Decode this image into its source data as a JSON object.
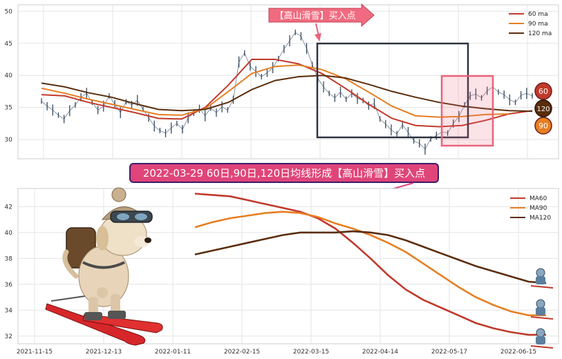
{
  "top_callout": "【高山滑雪】买入点",
  "mid_callout": "2022-03-29 60日,90日,120日均线形成【高山滑雪】买入点",
  "badges": [
    "60",
    "120",
    "90"
  ],
  "colors": {
    "ma60": "#c0392b",
    "ma90": "#e67e22",
    "ma120": "#5a2d0c",
    "price": "#34495e",
    "callout_fill": "#f06b7f",
    "highlight": "#e8637a",
    "dark_box": "#2c3340",
    "mid_callout_fill": "#e0457a",
    "mid_callout_border": "#3b1b6b"
  },
  "chart_data": [
    {
      "type": "line",
      "panel": "top",
      "y_ticks": [
        "30",
        "35",
        "40",
        "45",
        "50"
      ],
      "ylim": [
        27,
        51
      ],
      "grid": true,
      "legend_position": "top-right",
      "legend": [
        "60 ma",
        "90 ma",
        "120 ma"
      ],
      "series": [
        {
          "name": "60 ma",
          "color_key": "ma60",
          "points": [
            [
              0,
              37.0
            ],
            [
              10,
              36.8
            ],
            [
              20,
              35.8
            ],
            [
              30,
              35.0
            ],
            [
              40,
              34.2
            ],
            [
              50,
              33.3
            ],
            [
              60,
              33.2
            ],
            [
              70,
              35.0
            ],
            [
              80,
              38.5
            ],
            [
              90,
              42.5
            ],
            [
              100,
              42.5
            ],
            [
              110,
              41.8
            ],
            [
              120,
              40.3
            ],
            [
              130,
              38.0
            ],
            [
              140,
              35.5
            ],
            [
              150,
              33.3
            ],
            [
              160,
              32.2
            ],
            [
              170,
              32.0
            ],
            [
              180,
              32.2
            ],
            [
              190,
              33.0
            ],
            [
              200,
              34.0
            ],
            [
              210,
              34.5
            ]
          ]
        },
        {
          "name": "90 ma",
          "color_key": "ma90",
          "points": [
            [
              0,
              38.0
            ],
            [
              10,
              37.2
            ],
            [
              20,
              36.3
            ],
            [
              30,
              35.5
            ],
            [
              40,
              34.7
            ],
            [
              50,
              33.9
            ],
            [
              60,
              33.8
            ],
            [
              70,
              34.8
            ],
            [
              80,
              37.5
            ],
            [
              90,
              40.3
            ],
            [
              100,
              41.4
            ],
            [
              110,
              41.6
            ],
            [
              120,
              40.9
            ],
            [
              130,
              39.5
            ],
            [
              140,
              37.4
            ],
            [
              150,
              35.2
            ],
            [
              160,
              33.7
            ],
            [
              170,
              33.5
            ],
            [
              180,
              33.6
            ],
            [
              190,
              33.9
            ],
            [
              200,
              34.0
            ]
          ]
        },
        {
          "name": "120 ma",
          "color_key": "ma120",
          "points": [
            [
              0,
              38.8
            ],
            [
              10,
              38.2
            ],
            [
              20,
              37.3
            ],
            [
              30,
              36.6
            ],
            [
              40,
              35.6
            ],
            [
              50,
              34.7
            ],
            [
              60,
              34.5
            ],
            [
              70,
              34.7
            ],
            [
              80,
              35.8
            ],
            [
              90,
              37.8
            ],
            [
              100,
              39.2
            ],
            [
              110,
              39.8
            ],
            [
              120,
              40.0
            ],
            [
              130,
              39.6
            ],
            [
              140,
              38.6
            ],
            [
              150,
              37.5
            ],
            [
              160,
              36.6
            ],
            [
              170,
              35.8
            ],
            [
              180,
              35.2
            ],
            [
              190,
              34.8
            ],
            [
              200,
              34.5
            ],
            [
              210,
              34.4
            ]
          ]
        }
      ],
      "price_series": {
        "name": "price",
        "color_key": "price",
        "values": [
          36,
          35.2,
          34.6,
          33.8,
          33.2,
          34.5,
          35.4,
          36.6,
          37.2,
          35.8,
          34.6,
          35.2,
          36.8,
          35.5,
          34.2,
          35.9,
          35.4,
          36.1,
          34.7,
          33.4,
          32.1,
          31.4,
          31.0,
          31.8,
          32.5,
          31.6,
          33.4,
          34.1,
          34.8,
          33.7,
          34.9,
          34.2,
          35.1,
          34.6,
          36.2,
          42.1,
          43.5,
          41.4,
          40.6,
          39.8,
          40.4,
          41.2,
          42.6,
          44.1,
          45.4,
          46.7,
          46.1,
          44.2,
          41.7,
          39.5,
          38.2,
          37.2,
          36.5,
          37.4,
          36.3,
          37.2,
          36.4,
          36.1,
          35.3,
          35.6,
          33.2,
          32.4,
          31.5,
          30.9,
          32.3,
          31.1,
          29.8,
          29.4,
          28.5,
          30.1,
          30.6,
          31.2,
          31.0,
          32.5,
          33.6,
          35.4,
          36.8,
          37.1,
          36.5,
          37.6,
          38.2,
          37.4,
          37.0,
          36.2,
          35.8,
          36.9,
          37.2,
          36.8
        ]
      }
    },
    {
      "type": "line",
      "panel": "bottom",
      "x_ticks": [
        "2021-11-15",
        "2021-12-13",
        "2022-01-11",
        "2022-02-15",
        "2022-03-15",
        "2022-04-14",
        "2022-05-17",
        "2022-06-15"
      ],
      "y_ticks": [
        "32",
        "34",
        "36",
        "38",
        "40",
        "42"
      ],
      "ylim": [
        31.4,
        43.4
      ],
      "grid": true,
      "legend_position": "top-right",
      "legend": [
        "MA60",
        "MA90",
        "MA120"
      ],
      "series": [
        {
          "name": "MA60",
          "color_key": "ma60",
          "points": [
            [
              0,
              43.0
            ],
            [
              5,
              42.9
            ],
            [
              10,
              42.8
            ],
            [
              15,
              42.5
            ],
            [
              20,
              42.2
            ],
            [
              25,
              41.9
            ],
            [
              30,
              41.6
            ],
            [
              35,
              41.1
            ],
            [
              40,
              40.3
            ],
            [
              45,
              39.2
            ],
            [
              50,
              38.0
            ],
            [
              55,
              36.7
            ],
            [
              60,
              35.6
            ],
            [
              65,
              34.8
            ],
            [
              70,
              34.2
            ],
            [
              75,
              33.6
            ],
            [
              80,
              33.0
            ],
            [
              85,
              32.6
            ],
            [
              90,
              32.3
            ],
            [
              95,
              32.1
            ],
            [
              100,
              32.1
            ]
          ]
        },
        {
          "name": "MA90",
          "color_key": "ma90",
          "points": [
            [
              0,
              40.4
            ],
            [
              5,
              40.8
            ],
            [
              10,
              41.1
            ],
            [
              15,
              41.3
            ],
            [
              20,
              41.5
            ],
            [
              25,
              41.6
            ],
            [
              30,
              41.5
            ],
            [
              35,
              41.2
            ],
            [
              40,
              40.7
            ],
            [
              45,
              40.3
            ],
            [
              50,
              39.8
            ],
            [
              55,
              39.2
            ],
            [
              60,
              38.5
            ],
            [
              65,
              37.6
            ],
            [
              70,
              36.7
            ],
            [
              75,
              35.8
            ],
            [
              80,
              35.0
            ],
            [
              85,
              34.4
            ],
            [
              90,
              33.9
            ],
            [
              95,
              33.6
            ],
            [
              100,
              33.6
            ]
          ]
        },
        {
          "name": "MA120",
          "color_key": "ma120",
          "points": [
            [
              0,
              38.3
            ],
            [
              5,
              38.6
            ],
            [
              10,
              38.9
            ],
            [
              15,
              39.2
            ],
            [
              20,
              39.5
            ],
            [
              25,
              39.8
            ],
            [
              30,
              40.0
            ],
            [
              35,
              40.0
            ],
            [
              40,
              40.0
            ],
            [
              45,
              40.1
            ],
            [
              50,
              40.0
            ],
            [
              55,
              39.8
            ],
            [
              60,
              39.4
            ],
            [
              65,
              38.9
            ],
            [
              70,
              38.4
            ],
            [
              75,
              37.9
            ],
            [
              80,
              37.4
            ],
            [
              85,
              37.0
            ],
            [
              90,
              36.6
            ],
            [
              95,
              36.2
            ],
            [
              100,
              36.1
            ]
          ]
        }
      ]
    }
  ]
}
